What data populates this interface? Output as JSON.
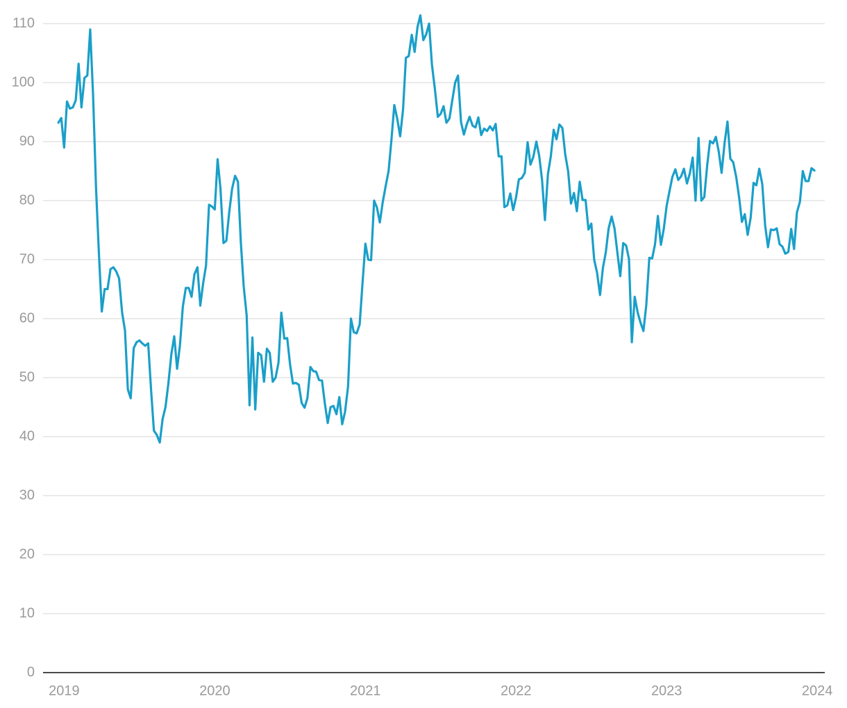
{
  "chart_data": {
    "type": "line",
    "color": "#1a9fc9",
    "grid": true,
    "xlim": [
      2018.86,
      2024.05
    ],
    "xticks": [
      2019,
      2020,
      2021,
      2022,
      2023,
      2024
    ],
    "ylim": [
      0,
      110
    ],
    "yticks": [
      0,
      10,
      20,
      30,
      40,
      50,
      60,
      70,
      80,
      90,
      100,
      110
    ],
    "x": [
      2018.962,
      2018.981,
      2019,
      2019.019,
      2019.038,
      2019.058,
      2019.077,
      2019.096,
      2019.115,
      2019.135,
      2019.154,
      2019.173,
      2019.192,
      2019.212,
      2019.231,
      2019.25,
      2019.269,
      2019.288,
      2019.308,
      2019.327,
      2019.346,
      2019.365,
      2019.385,
      2019.404,
      2019.423,
      2019.442,
      2019.462,
      2019.481,
      2019.5,
      2019.519,
      2019.538,
      2019.558,
      2019.577,
      2019.596,
      2019.615,
      2019.635,
      2019.654,
      2019.673,
      2019.692,
      2019.712,
      2019.731,
      2019.75,
      2019.769,
      2019.788,
      2019.808,
      2019.827,
      2019.846,
      2019.865,
      2019.885,
      2019.904,
      2019.923,
      2019.942,
      2019.962,
      2019.981,
      2020,
      2020.019,
      2020.038,
      2020.058,
      2020.077,
      2020.096,
      2020.115,
      2020.135,
      2020.154,
      2020.173,
      2020.192,
      2020.212,
      2020.231,
      2020.25,
      2020.269,
      2020.288,
      2020.308,
      2020.327,
      2020.346,
      2020.365,
      2020.385,
      2020.404,
      2020.423,
      2020.442,
      2020.462,
      2020.481,
      2020.5,
      2020.519,
      2020.538,
      2020.558,
      2020.577,
      2020.596,
      2020.615,
      2020.635,
      2020.654,
      2020.673,
      2020.692,
      2020.712,
      2020.731,
      2020.75,
      2020.769,
      2020.788,
      2020.808,
      2020.827,
      2020.846,
      2020.865,
      2020.885,
      2020.904,
      2020.923,
      2020.942,
      2020.962,
      2020.981,
      2021,
      2021.019,
      2021.038,
      2021.058,
      2021.077,
      2021.096,
      2021.115,
      2021.135,
      2021.154,
      2021.173,
      2021.192,
      2021.212,
      2021.231,
      2021.25,
      2021.269,
      2021.288,
      2021.308,
      2021.327,
      2021.346,
      2021.365,
      2021.385,
      2021.404,
      2021.423,
      2021.442,
      2021.462,
      2021.481,
      2021.5,
      2021.519,
      2021.538,
      2021.558,
      2021.577,
      2021.596,
      2021.615,
      2021.635,
      2021.654,
      2021.673,
      2021.692,
      2021.712,
      2021.731,
      2021.75,
      2021.769,
      2021.788,
      2021.808,
      2021.827,
      2021.846,
      2021.865,
      2021.885,
      2021.904,
      2021.923,
      2021.942,
      2021.962,
      2021.981,
      2022,
      2022.019,
      2022.038,
      2022.058,
      2022.077,
      2022.096,
      2022.115,
      2022.135,
      2022.154,
      2022.173,
      2022.192,
      2022.212,
      2022.231,
      2022.25,
      2022.269,
      2022.288,
      2022.308,
      2022.327,
      2022.346,
      2022.365,
      2022.385,
      2022.404,
      2022.423,
      2022.442,
      2022.462,
      2022.481,
      2022.5,
      2022.519,
      2022.538,
      2022.558,
      2022.577,
      2022.596,
      2022.615,
      2022.635,
      2022.654,
      2022.673,
      2022.692,
      2022.712,
      2022.731,
      2022.75,
      2022.769,
      2022.788,
      2022.808,
      2022.827,
      2022.846,
      2022.865,
      2022.885,
      2022.904,
      2022.923,
      2022.942,
      2022.962,
      2022.981,
      2023,
      2023.019,
      2023.038,
      2023.058,
      2023.077,
      2023.096,
      2023.115,
      2023.135,
      2023.154,
      2023.173,
      2023.192,
      2023.212,
      2023.231,
      2023.25,
      2023.269,
      2023.288,
      2023.308,
      2023.327,
      2023.346,
      2023.365,
      2023.385,
      2023.404,
      2023.423,
      2023.442,
      2023.462,
      2023.481,
      2023.5,
      2023.519,
      2023.538,
      2023.558,
      2023.577,
      2023.596,
      2023.615,
      2023.635,
      2023.654,
      2023.673,
      2023.692,
      2023.712,
      2023.731,
      2023.75,
      2023.769,
      2023.788,
      2023.808,
      2023.827,
      2023.846,
      2023.865,
      2023.885,
      2023.904,
      2023.923,
      2023.942,
      2023.962,
      2023.981
    ],
    "values": [
      93.2,
      94,
      89,
      96.8,
      95.6,
      95.8,
      97,
      103.2,
      95.8,
      100.8,
      101.2,
      109,
      98,
      82,
      71,
      61.2,
      65,
      65,
      68.4,
      68.7,
      68,
      66.8,
      61,
      58,
      48,
      46.5,
      55,
      56,
      56.3,
      55.8,
      55.4,
      55.8,
      48,
      41,
      40.3,
      39,
      43,
      45,
      49,
      54,
      57,
      51.5,
      55.5,
      62,
      65.2,
      65.2,
      63.7,
      67.5,
      68.7,
      62.2,
      66,
      69,
      79.3,
      79,
      78.5,
      87,
      82,
      72.8,
      73.2,
      78,
      82,
      84.2,
      83.2,
      73,
      65.5,
      60.5,
      45.3,
      56.8,
      44.6,
      54.2,
      53.8,
      49.3,
      54.9,
      54.2,
      49.3,
      50,
      52.5,
      61,
      56.6,
      56.7,
      52.2,
      49,
      49.1,
      48.8,
      45.7,
      44.9,
      46.5,
      51.8,
      51.1,
      51,
      49.6,
      49.5,
      45.6,
      42.3,
      45,
      45.2,
      43.8,
      46.7,
      42.1,
      44.2,
      48.5,
      60,
      57.7,
      57.5,
      59,
      66,
      72.7,
      70,
      69.9,
      80,
      78.8,
      76.3,
      79.7,
      82.5,
      85,
      90.3,
      96.2,
      93.8,
      90.9,
      95.4,
      104.2,
      104.5,
      108.1,
      105.2,
      109.4,
      111.4,
      107.2,
      108.2,
      110,
      103,
      98.8,
      94.2,
      94.7,
      96,
      93.2,
      93.9,
      97,
      100,
      101.2,
      93.3,
      91.2,
      92.9,
      94.2,
      92.7,
      92.4,
      94.1,
      91.1,
      92.2,
      91.8,
      92.6,
      91.9,
      93,
      87.5,
      87.5,
      78.9,
      79.2,
      81.2,
      78.4,
      80.5,
      83.6,
      83.8,
      84.7,
      89.9,
      86.1,
      87.4,
      90,
      87.6,
      83.5,
      76.7,
      84.5,
      87.5,
      92,
      90.4,
      92.9,
      92.3,
      87.8,
      85,
      79.5,
      81.3,
      78.2,
      83.2,
      80.1,
      80.1,
      75.1,
      76.1,
      70,
      67.8,
      64,
      68.6,
      71.2,
      75.3,
      77.3,
      75.3,
      71.2,
      67.2,
      72.8,
      72.4,
      70.1,
      56,
      63.7,
      61,
      59.3,
      57.9,
      62.3,
      70.3,
      70.2,
      72.6,
      77.4,
      72.5,
      75.2,
      79.1,
      81.6,
      84,
      85.3,
      83.5,
      84.1,
      85.4,
      82.9,
      84.6,
      87.3,
      80,
      90.6,
      80,
      80.6,
      85.9,
      90.1,
      89.7,
      90.8,
      88.3,
      84.7,
      89.8,
      93.4,
      87.1,
      86.5,
      84,
      80.6,
      76.4,
      77.7,
      74.2,
      77.1,
      83,
      82.6,
      85.4,
      82.8,
      75.8,
      72.1,
      75.1,
      75,
      75.3,
      72.6,
      72.2,
      71,
      71.3,
      75.2,
      71.8,
      78,
      79.8,
      85,
      83.3,
      83.3,
      85.5,
      85.1
    ]
  }
}
